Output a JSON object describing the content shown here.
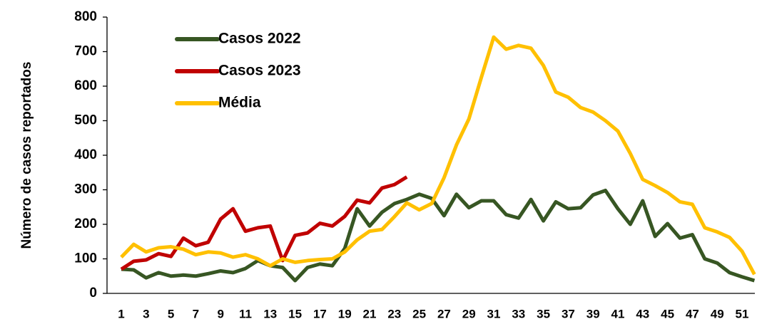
{
  "chart_data": {
    "type": "line",
    "ylabel": "Número de casos reportados",
    "categories": [
      1,
      null,
      3,
      null,
      5,
      null,
      7,
      null,
      9,
      null,
      11,
      null,
      13,
      null,
      15,
      null,
      17,
      null,
      19,
      null,
      21,
      null,
      23,
      null,
      25,
      null,
      27,
      null,
      29,
      null,
      31,
      null,
      33,
      null,
      35,
      null,
      37,
      null,
      39,
      null,
      41,
      null,
      43,
      null,
      45,
      null,
      47,
      null,
      49,
      null,
      51,
      null
    ],
    "series": [
      {
        "name": "Casos 2022",
        "color": "#375623",
        "values": [
          70,
          68,
          45,
          60,
          50,
          53,
          50,
          57,
          65,
          60,
          72,
          95,
          80,
          75,
          37,
          75,
          85,
          80,
          130,
          245,
          195,
          235,
          260,
          272,
          287,
          275,
          225,
          287,
          248,
          268,
          268,
          228,
          218,
          272,
          210,
          265,
          245,
          248,
          285,
          298,
          245,
          200,
          268,
          165,
          202,
          160,
          170,
          100,
          88,
          60,
          48,
          37
        ]
      },
      {
        "name": "Casos 2023",
        "color": "#c00000",
        "values": [
          70,
          93,
          97,
          115,
          107,
          160,
          138,
          148,
          215,
          245,
          180,
          190,
          195,
          95,
          168,
          175,
          203,
          195,
          223,
          270,
          262,
          305,
          315,
          337,
          null,
          null,
          null,
          null,
          null,
          null,
          null,
          null,
          null,
          null,
          null,
          null,
          null,
          null,
          null,
          null,
          null,
          null,
          null,
          null,
          null,
          null,
          null,
          null,
          null,
          null,
          null,
          null
        ]
      },
      {
        "name": "Média",
        "color": "#ffc000",
        "values": [
          105,
          142,
          120,
          132,
          135,
          128,
          112,
          120,
          117,
          105,
          112,
          100,
          80,
          100,
          90,
          95,
          98,
          100,
          120,
          155,
          180,
          185,
          222,
          262,
          242,
          260,
          335,
          430,
          505,
          625,
          742,
          707,
          718,
          710,
          660,
          583,
          568,
          538,
          525,
          500,
          470,
          405,
          330,
          312,
          292,
          265,
          258,
          190,
          178,
          162,
          122,
          55
        ]
      }
    ],
    "ylim": [
      0,
      800
    ],
    "yticks": [
      0,
      100,
      200,
      300,
      400,
      500,
      600,
      700,
      800
    ],
    "legend": "upper left"
  }
}
